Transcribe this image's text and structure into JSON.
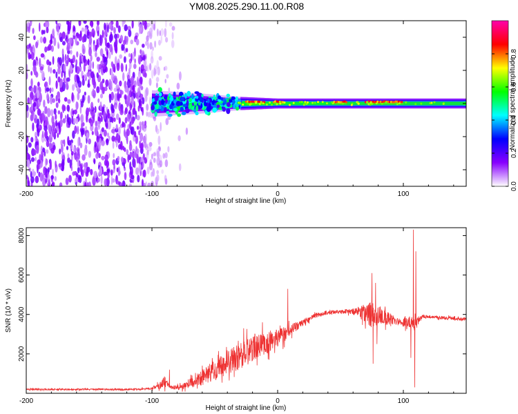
{
  "title": "YM08.2025.290.11.00.R08",
  "chart_data": [
    {
      "type": "heatmap",
      "xlabel": "Height of straight line (km)",
      "ylabel": "Frequency (Hz)",
      "xlim": [
        -200,
        150
      ],
      "ylim": [
        -50,
        50
      ],
      "xticks": [
        -200,
        -100,
        0,
        100
      ],
      "xtick_labels": [
        "-200",
        "-100",
        "0",
        "100"
      ],
      "yticks": [
        -40,
        -20,
        0,
        20,
        40
      ],
      "ytick_labels": [
        "-40",
        "-20",
        "0",
        "20",
        "40"
      ],
      "noise_region": [
        -200,
        -70
      ],
      "signal_band": {
        "x_start": -100,
        "x_end": 150,
        "center_hz": 0,
        "halfwidth_hz": [
          [
            -100,
            8
          ],
          [
            -60,
            6
          ],
          [
            -30,
            4
          ],
          [
            0,
            3
          ],
          [
            150,
            3
          ]
        ],
        "peak_segments": [
          [
            -25,
            -10
          ],
          [
            -3,
            5
          ],
          [
            45,
            55
          ],
          [
            70,
            100
          ]
        ]
      },
      "colorbar": {
        "label": "Normalized spectral amplitude",
        "range": [
          0,
          1
        ],
        "ticks": [
          0,
          0.2,
          0.4,
          0.6,
          0.8
        ],
        "tick_labels": [
          "0.0",
          "0.2",
          "0.4",
          "0.6",
          "0.8"
        ],
        "stops": [
          "#ffffff",
          "#8800ff",
          "#0000ff",
          "#00ffff",
          "#00ff00",
          "#ffff00",
          "#ff0000",
          "#ff00aa"
        ]
      }
    },
    {
      "type": "line",
      "xlabel": "Height of straight line (km)",
      "ylabel": "SNR (10 * v/v)",
      "xlim": [
        -200,
        150
      ],
      "ylim": [
        0,
        8400
      ],
      "xticks": [
        -200,
        -100,
        0,
        100
      ],
      "xtick_labels": [
        "-200",
        "-100",
        "0",
        "100"
      ],
      "yticks": [
        2000,
        4000,
        6000,
        8000
      ],
      "ytick_labels": [
        "2000",
        "4000",
        "6000",
        "8000"
      ],
      "color": "#ee3333",
      "trend": {
        "x": [
          -200,
          -110,
          -100,
          -90,
          -85,
          -75,
          -60,
          -45,
          -30,
          -15,
          0,
          10,
          20,
          30,
          40,
          55,
          65,
          75,
          85,
          95,
          105,
          110,
          115,
          150
        ],
        "y": [
          200,
          200,
          250,
          500,
          300,
          350,
          800,
          1400,
          1900,
          2400,
          2800,
          3200,
          3600,
          3950,
          4100,
          4150,
          4150,
          4000,
          3850,
          3650,
          3600,
          3500,
          3900,
          3750
        ],
        "noise": [
          40,
          40,
          60,
          250,
          100,
          150,
          400,
          600,
          700,
          600,
          500,
          300,
          150,
          120,
          100,
          100,
          250,
          700,
          400,
          200,
          300,
          300,
          80,
          80
        ]
      },
      "spikes": [
        [
          -86,
          1200
        ],
        [
          -27,
          3300
        ],
        [
          -18,
          3000
        ],
        [
          -12,
          3600
        ],
        [
          8,
          5300
        ],
        [
          75,
          6100
        ],
        [
          78,
          5600
        ],
        [
          108,
          8300
        ],
        [
          110,
          7200
        ]
      ],
      "dips": [
        [
          76,
          1500
        ],
        [
          79,
          2500
        ],
        [
          109,
          300
        ],
        [
          106,
          1800
        ]
      ]
    }
  ]
}
